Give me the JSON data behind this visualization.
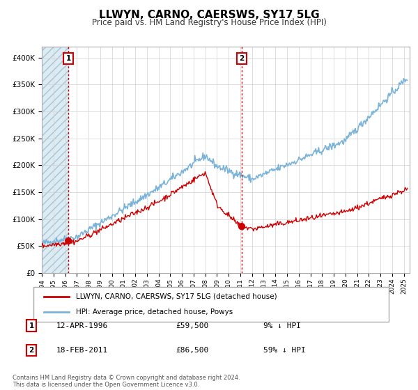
{
  "title": "LLWYN, CARNO, CAERSWS, SY17 5LG",
  "subtitle": "Price paid vs. HM Land Registry's House Price Index (HPI)",
  "ylim": [
    0,
    420000
  ],
  "xlim_start": 1994.0,
  "xlim_end": 2025.5,
  "yticks": [
    0,
    50000,
    100000,
    150000,
    200000,
    250000,
    300000,
    350000,
    400000
  ],
  "ytick_labels": [
    "£0",
    "£50K",
    "£100K",
    "£150K",
    "£200K",
    "£250K",
    "£300K",
    "£350K",
    "£400K"
  ],
  "sale1_x": 1996.28,
  "sale1_y": 59500,
  "sale1_label": "1",
  "sale1_date": "12-APR-1996",
  "sale1_price": "£59,500",
  "sale1_hpi": "9% ↓ HPI",
  "sale2_x": 2011.12,
  "sale2_y": 86500,
  "sale2_label": "2",
  "sale2_date": "18-FEB-2011",
  "sale2_price": "£86,500",
  "sale2_hpi": "59% ↓ HPI",
  "hpi_color": "#7ab3d9",
  "sold_color": "#cc0000",
  "vline_color": "#cc0000",
  "legend_label_sold": "LLWYN, CARNO, CAERSWS, SY17 5LG (detached house)",
  "legend_label_hpi": "HPI: Average price, detached house, Powys",
  "footer": "Contains HM Land Registry data © Crown copyright and database right 2024.\nThis data is licensed under the Open Government Licence v3.0."
}
